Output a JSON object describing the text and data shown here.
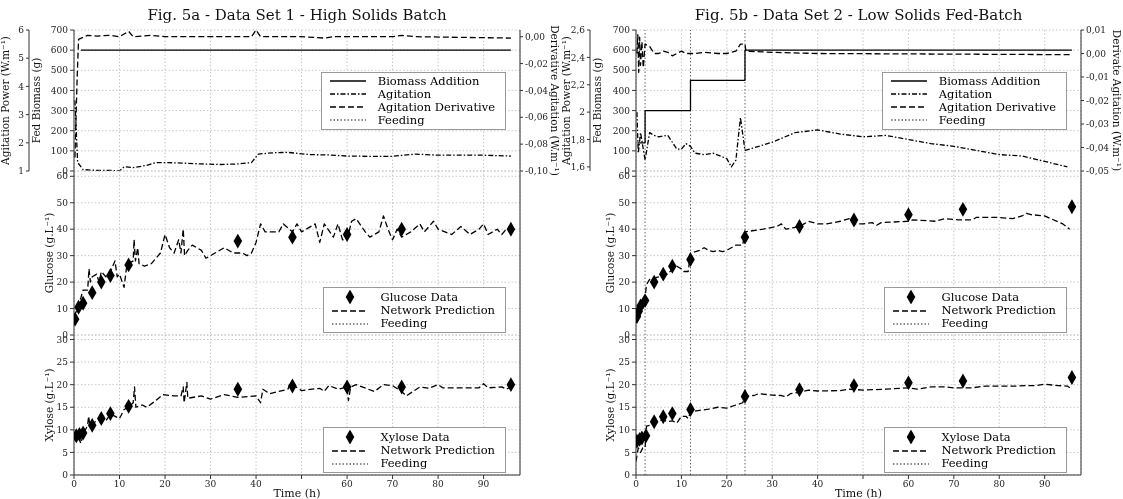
{
  "chart_data": [
    {
      "type": "line",
      "title": "Fig. 5a - Data Set 1 - High Solids Batch",
      "ylabel": "Fed Biomass  (g)",
      "y3label": "Agitation Power (W.m⁻¹)",
      "y2label": "Derivative Agitation (W.m⁻¹)",
      "xlim": [
        0,
        98
      ],
      "xticks": [
        0,
        10,
        20,
        30,
        40,
        50,
        60,
        70,
        80,
        90
      ],
      "ylim": [
        0,
        700
      ],
      "yticks": [
        0,
        100,
        200,
        300,
        400,
        500,
        600,
        700
      ],
      "y3lim": [
        1,
        6
      ],
      "y3ticks": [
        1,
        2,
        3,
        4,
        5,
        6
      ],
      "y2lim": [
        -0.1,
        0.005
      ],
      "y2ticks": [
        {
          "value": -0.1,
          "label": "-0,10"
        },
        {
          "value": -0.08,
          "label": "-0,08"
        },
        {
          "value": -0.06,
          "label": "-0,06"
        },
        {
          "value": -0.04,
          "label": "-0,04"
        },
        {
          "value": -0.02,
          "label": "-0,02"
        },
        {
          "value": 0,
          "label": "0,00"
        }
      ],
      "grid": true,
      "legend": "right",
      "tick_labels": "y",
      "series": [
        {
          "name": "Biomass Addition",
          "line_style": "solid",
          "color": "#000000",
          "x": [
            1.5,
            96
          ],
          "values": [
            600,
            600
          ]
        },
        {
          "name": "Agitation",
          "axis": "y3",
          "line_style": "dashdot",
          "color": "#000000",
          "x": [
            0.2,
            0.8,
            2,
            5,
            8,
            10,
            11,
            13,
            16,
            18,
            20,
            24,
            28,
            32,
            36,
            39,
            40.5,
            44,
            47,
            52,
            56,
            60,
            65,
            70,
            75,
            80,
            85,
            90,
            96
          ],
          "values": [
            3.5,
            1.3,
            1.05,
            1.02,
            1.02,
            1.0,
            1.15,
            1.12,
            1.2,
            1.3,
            1.3,
            1.28,
            1.25,
            1.23,
            1.25,
            1.3,
            1.6,
            1.65,
            1.66,
            1.58,
            1.57,
            1.53,
            1.52,
            1.52,
            1.6,
            1.56,
            1.56,
            1.56,
            1.53
          ]
        },
        {
          "name": "Agitation Derivative",
          "axis": "y2",
          "line_style": "dashed",
          "color": "#000000",
          "x": [
            0.2,
            0.7,
            1,
            3,
            5,
            8,
            10,
            12,
            13,
            17,
            20,
            25,
            30,
            35,
            39,
            40,
            41,
            50,
            55,
            57,
            70,
            72,
            75,
            96
          ],
          "values": [
            -0.09,
            -0.03,
            -0.002,
            0.001,
            0.0005,
            0.001,
            0,
            0.004,
            0,
            0.001,
            0,
            0,
            0,
            0,
            0,
            0.005,
            0,
            0,
            -0.001,
            0,
            0,
            0.001,
            0,
            -0.001
          ]
        },
        {
          "name": "Feeding",
          "line_style": "dotted",
          "color": "#666666"
        }
      ]
    },
    {
      "type": "line",
      "ylabel": "Glucose (g.L⁻¹)",
      "xlim": [
        0,
        98
      ],
      "xticks": [
        0,
        10,
        20,
        30,
        40,
        50,
        60,
        70,
        80,
        90
      ],
      "ylim": [
        0,
        62
      ],
      "yticks": [
        0,
        10,
        20,
        30,
        40,
        50,
        60
      ],
      "grid": true,
      "legend": "bottom right",
      "tick_labels": "y",
      "series": [
        {
          "name": "Glucose Data",
          "type": "scatter",
          "marker": "diamond",
          "color": "#000000",
          "x": [
            0.25,
            1,
            2,
            4,
            6,
            8,
            12,
            36,
            48,
            60,
            72,
            96
          ],
          "values": [
            6,
            10.5,
            12,
            16,
            20,
            22.5,
            26.5,
            35.5,
            37,
            38,
            40,
            40
          ]
        },
        {
          "name": "Network Prediction",
          "line_style": "dashed",
          "color": "#000000",
          "x": [
            0,
            0.5,
            1,
            1.5,
            2,
            3,
            3.3,
            3.6,
            4,
            5,
            5.5,
            6,
            7,
            8,
            9,
            9.5,
            10,
            11,
            11.5,
            12,
            13,
            13.2,
            13.5,
            14,
            14.3,
            15.5,
            17,
            19,
            20,
            21,
            22,
            23,
            23.5,
            24,
            24.3,
            25,
            26,
            28,
            29,
            31,
            33,
            35,
            37,
            38,
            39,
            40,
            41,
            42,
            45,
            46,
            48,
            49,
            50,
            53,
            54,
            55,
            57,
            58,
            59,
            60,
            61,
            62,
            64,
            65,
            67,
            68,
            69,
            70,
            71,
            72,
            74,
            76,
            77,
            79,
            80,
            83,
            85,
            87,
            89,
            90,
            91,
            93,
            94,
            95,
            96
          ],
          "values": [
            7,
            9,
            12,
            14,
            17,
            17,
            25,
            20,
            22,
            23,
            20,
            24,
            22,
            24,
            28,
            22,
            23,
            18,
            25,
            27,
            28,
            36,
            28,
            33,
            27,
            26,
            27,
            31,
            38,
            33,
            31,
            36,
            31,
            40,
            30,
            32,
            34,
            32,
            29,
            31,
            33,
            31,
            31,
            30,
            31,
            35,
            42,
            39,
            39,
            42,
            39,
            42,
            39,
            42,
            35,
            42,
            37,
            42,
            36,
            36,
            43,
            44,
            39,
            37,
            39,
            45,
            40,
            36,
            40,
            37,
            39,
            42,
            39,
            43,
            40,
            38,
            41,
            38,
            40,
            42,
            38,
            40,
            38,
            40,
            40
          ]
        },
        {
          "name": "Feeding",
          "line_style": "dotted",
          "color": "#666666"
        }
      ]
    },
    {
      "type": "line",
      "ylabel": "Xylose (g.L⁻¹)",
      "xlabel": "Time (h)",
      "xlim": [
        0,
        98
      ],
      "xticks": [
        0,
        10,
        20,
        30,
        40,
        {
          "value": 50,
          "label": null
        },
        60,
        70,
        80,
        90
      ],
      "ylim": [
        0,
        31
      ],
      "yticks": [
        0,
        5,
        10,
        15,
        20,
        25,
        30
      ],
      "grid": true,
      "legend": "bottom right",
      "series": [
        {
          "name": "Xylose Data",
          "type": "scatter",
          "marker": "diamond",
          "color": "#000000",
          "x": [
            0.5,
            1.2,
            2,
            4,
            6,
            8,
            12,
            36,
            48,
            60,
            72,
            96
          ],
          "values": [
            8.7,
            9,
            9.3,
            11,
            12.5,
            13.6,
            15.2,
            19,
            19.7,
            19.5,
            19.5,
            20
          ]
        },
        {
          "name": "Network Prediction",
          "line_style": "dashed",
          "color": "#000000",
          "x": [
            0,
            0.5,
            1,
            1.5,
            2,
            3,
            3.2,
            3.5,
            5,
            6,
            7,
            8,
            10,
            11,
            12,
            13,
            13.3,
            13.6,
            15,
            16,
            18,
            19.5,
            22,
            23.5,
            24,
            24.2,
            24.8,
            25,
            28,
            30,
            33,
            36,
            40,
            41,
            41.5,
            43,
            45,
            47,
            47.5,
            50,
            54,
            55,
            56,
            58,
            60,
            60.3,
            60.8,
            62,
            66,
            68,
            70,
            72,
            73,
            76,
            78,
            80,
            81,
            89,
            90,
            91,
            94,
            95,
            96
          ],
          "values": [
            8,
            7.5,
            8.5,
            7,
            9,
            11,
            13,
            11,
            12,
            12.5,
            12,
            13.5,
            12.5,
            14.5,
            15,
            16,
            19.5,
            15,
            15.5,
            15,
            16.5,
            17.8,
            17.5,
            17.5,
            19.5,
            16,
            20.5,
            17,
            17.5,
            16.8,
            17.8,
            17.2,
            17.5,
            16,
            19,
            18,
            18.5,
            19,
            20.3,
            18.7,
            19.2,
            18.5,
            19.8,
            19,
            19.5,
            16.5,
            19.5,
            20,
            18.5,
            20,
            19.8,
            18.5,
            17.5,
            19.5,
            19.2,
            20,
            19.3,
            19.3,
            20.2,
            19.3,
            19.5,
            19,
            19.5
          ]
        },
        {
          "name": "Feeding",
          "line_style": "dotted",
          "color": "#666666"
        }
      ]
    },
    {
      "type": "line",
      "title": "Fig. 5b - Data Set 2 - Low Solids Fed-Batch",
      "ylabel": "Fed Biomass  (g)",
      "y3label": "Agitation Power (W.m⁻¹)",
      "y2label": "Derivate Agitation (W.m⁻¹)",
      "xlim": [
        0,
        98
      ],
      "xticks": [
        0,
        10,
        20,
        30,
        40,
        50,
        60,
        70,
        80,
        90
      ],
      "ylim": [
        0,
        700
      ],
      "yticks": [
        0,
        100,
        200,
        300,
        400,
        500,
        600,
        700
      ],
      "y3lim": [
        1.57,
        2.6
      ],
      "y3ticks": [
        {
          "value": 1.6,
          "label": "1,6"
        },
        {
          "value": 1.8,
          "label": "1,8"
        },
        2,
        {
          "value": 2.2,
          "label": "2,2"
        },
        {
          "value": 2.4,
          "label": "2,4"
        },
        {
          "value": 2.6,
          "label": "2,6"
        }
      ],
      "y2lim": [
        -0.05,
        0.01
      ],
      "y2ticks": [
        {
          "value": -0.05,
          "label": "-0,05"
        },
        {
          "value": -0.04,
          "label": "-0,04"
        },
        {
          "value": -0.03,
          "label": "-0,03"
        },
        {
          "value": -0.02,
          "label": "-0,02"
        },
        {
          "value": -0.01,
          "label": "-0,01"
        },
        {
          "value": 0,
          "label": "0,00"
        },
        {
          "value": 0.01,
          "label": "0,01"
        }
      ],
      "grid": true,
      "legend": "right",
      "tick_labels": "y",
      "ref_lines": [
        {
          "axis": "x",
          "value": 2,
          "color": "#666666",
          "line_style": "dotted"
        },
        {
          "axis": "x",
          "value": 12,
          "color": "#666666",
          "line_style": "dotted"
        },
        {
          "axis": "x",
          "value": 24,
          "color": "#666666",
          "line_style": "dotted"
        }
      ],
      "series": [
        {
          "name": "Biomass Addition",
          "line_style": "solid",
          "color": "#000000",
          "x": [
            0.3,
            2,
            2,
            12,
            12,
            24,
            24,
            96
          ],
          "values": [
            140,
            140,
            300,
            300,
            450,
            450,
            600,
            600
          ]
        },
        {
          "name": "Agitation",
          "axis": "y3",
          "line_style": "dashdot",
          "color": "#000000",
          "x": [
            0.2,
            0.5,
            1,
            1.5,
            2,
            3,
            4,
            5,
            7,
            9,
            10,
            11,
            12,
            13,
            15,
            17,
            20,
            21,
            22,
            23,
            24,
            30,
            35,
            40,
            45,
            50,
            55,
            60,
            65,
            70,
            75,
            80,
            85,
            90,
            95
          ],
          "values": [
            2.0,
            1.7,
            1.85,
            1.75,
            1.65,
            1.85,
            1.83,
            1.82,
            1.83,
            1.73,
            1.73,
            1.77,
            1.75,
            1.7,
            1.69,
            1.7,
            1.66,
            1.6,
            1.65,
            1.96,
            1.72,
            1.78,
            1.85,
            1.87,
            1.84,
            1.82,
            1.83,
            1.8,
            1.77,
            1.75,
            1.72,
            1.69,
            1.68,
            1.64,
            1.6
          ]
        },
        {
          "name": "Agitation Derivative",
          "axis": "y2",
          "line_style": "dashed",
          "color": "#000000",
          "x": [
            0.2,
            0.4,
            0.6,
            0.8,
            1,
            1.3,
            1.6,
            2,
            3,
            4,
            5,
            6,
            7,
            8,
            9,
            10,
            11,
            13,
            15,
            18,
            20,
            22,
            23,
            24,
            24.2,
            30,
            40,
            96
          ],
          "values": [
            0,
            0.008,
            -0.008,
            0.007,
            -0.005,
            0.005,
            -0.006,
            0.004,
            0.003,
            0,
            0,
            0.001,
            0.0005,
            -0.001,
            0,
            0.001,
            0,
            0,
            0.0005,
            0,
            0,
            0.001,
            0.004,
            0.004,
            0.001,
            0.0005,
            0,
            -0.0005
          ]
        },
        {
          "name": "Feeding",
          "line_style": "dotted",
          "color": "#666666"
        }
      ]
    },
    {
      "type": "line",
      "ylabel": "Glucose (g.L⁻¹)",
      "xlim": [
        0,
        98
      ],
      "xticks": [
        0,
        10,
        20,
        30,
        40,
        50,
        60,
        70,
        80,
        90
      ],
      "ylim": [
        0,
        62
      ],
      "yticks": [
        0,
        10,
        20,
        30,
        40,
        50,
        60
      ],
      "grid": true,
      "legend": "bottom right",
      "tick_labels": "y",
      "ref_lines": [
        {
          "axis": "x",
          "value": 2,
          "color": "#666666",
          "line_style": "dotted"
        },
        {
          "axis": "x",
          "value": 12,
          "color": "#666666",
          "line_style": "dotted"
        },
        {
          "axis": "x",
          "value": 24,
          "color": "#666666",
          "line_style": "dotted"
        }
      ],
      "series": [
        {
          "name": "Glucose Data",
          "type": "scatter",
          "marker": "diamond",
          "color": "#000000",
          "x": [
            0.2,
            0.6,
            1,
            2,
            4,
            6,
            8,
            12,
            24,
            36,
            48,
            60,
            72,
            96
          ],
          "values": [
            7,
            9,
            11,
            13,
            20,
            23,
            26,
            28.5,
            37,
            41,
            43.5,
            45.5,
            47.5,
            48.5
          ]
        },
        {
          "name": "Network Prediction",
          "line_style": "dashed",
          "color": "#000000",
          "x": [
            0,
            0.5,
            1,
            1.5,
            2,
            2.3,
            3,
            5,
            7,
            8,
            9,
            10,
            10.5,
            11.5,
            12,
            14,
            15,
            16,
            17,
            18,
            19,
            20,
            22,
            23.5,
            24,
            28,
            31,
            32,
            33,
            36,
            37,
            38,
            40,
            42,
            45,
            47,
            48,
            50,
            52,
            53,
            54,
            60,
            61,
            66,
            68,
            71,
            74,
            75,
            79,
            83,
            85,
            86,
            87,
            90,
            94,
            95.5
          ],
          "values": [
            5,
            9,
            11,
            10,
            14,
            19,
            21,
            22,
            23,
            25,
            26,
            25,
            24,
            24,
            31,
            32,
            33,
            32,
            31.5,
            32,
            31.5,
            32,
            34,
            34,
            39,
            40,
            41,
            42,
            40,
            41,
            42,
            43,
            42,
            42,
            43,
            44,
            42,
            42,
            42.5,
            41.5,
            42.5,
            43,
            43.5,
            43,
            44,
            43.5,
            43.5,
            44.5,
            44.5,
            44,
            45,
            46,
            45.5,
            45,
            42,
            40
          ]
        },
        {
          "name": "Feeding",
          "line_style": "dotted",
          "color": "#666666"
        }
      ]
    },
    {
      "type": "line",
      "ylabel": "Xylose (g.L⁻¹)",
      "xlabel": "Time (h)",
      "xlim": [
        0,
        98
      ],
      "xticks": [
        0,
        10,
        20,
        30,
        40,
        {
          "value": 50,
          "label": null
        },
        60,
        70,
        80,
        90
      ],
      "ylim": [
        0,
        31
      ],
      "yticks": [
        0,
        5,
        10,
        15,
        20,
        25,
        30
      ],
      "grid": true,
      "legend": "bottom right",
      "ref_lines": [
        {
          "axis": "x",
          "value": 2,
          "color": "#666666",
          "line_style": "dotted"
        },
        {
          "axis": "x",
          "value": 12,
          "color": "#666666",
          "line_style": "dotted"
        },
        {
          "axis": "x",
          "value": 24,
          "color": "#666666",
          "line_style": "dotted"
        }
      ],
      "series": [
        {
          "name": "Xylose Data",
          "type": "scatter",
          "marker": "diamond",
          "color": "#000000",
          "x": [
            0.2,
            0.8,
            1.3,
            2.2,
            4,
            6,
            8,
            12,
            24,
            36,
            48,
            60,
            72,
            96
          ],
          "values": [
            7.5,
            7.9,
            8.2,
            8.7,
            11.8,
            12.9,
            13.6,
            14.5,
            17.4,
            18.9,
            19.8,
            20.4,
            20.8,
            21.6
          ]
        },
        {
          "name": "Network Prediction",
          "line_style": "dashed",
          "color": "#000000",
          "x": [
            0,
            0.5,
            1,
            1.5,
            2,
            2.3,
            3,
            5,
            6,
            7,
            8,
            9,
            10,
            11,
            11.5,
            12,
            14,
            16,
            18,
            20,
            22,
            23.5,
            24,
            26,
            27,
            30,
            32,
            33,
            34,
            36,
            38,
            40,
            45,
            47,
            50,
            55,
            60,
            62,
            65,
            68,
            70,
            74,
            77,
            84,
            86,
            88,
            90,
            93,
            95,
            96
          ],
          "values": [
            3,
            6,
            5,
            6,
            6,
            10.8,
            11,
            12,
            12.2,
            11.8,
            12,
            11.5,
            13,
            13,
            12.5,
            14,
            14.3,
            14.6,
            15,
            14.8,
            15.5,
            16,
            17.4,
            17.6,
            18,
            17.7,
            17.6,
            17.3,
            18,
            18.3,
            18.8,
            18.6,
            18.7,
            19,
            18.8,
            19,
            19.3,
            19,
            19.5,
            19.5,
            19.3,
            19.3,
            19.7,
            19.7,
            19.8,
            19.8,
            20.1,
            19.8,
            19.7,
            19
          ]
        },
        {
          "name": "Feeding",
          "line_style": "dotted",
          "color": "#666666"
        }
      ]
    }
  ]
}
